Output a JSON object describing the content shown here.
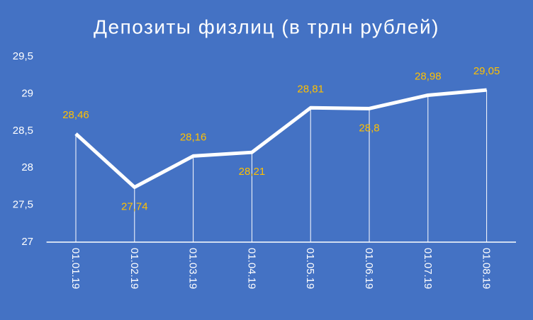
{
  "chart_data": {
    "type": "line",
    "title": "Депозиты физлиц (в трлн рублей)",
    "categories": [
      "01.01.19",
      "01.02.19",
      "01.03.19",
      "01.04.19",
      "01.05.19",
      "01.06.19",
      "01.07.19",
      "01.08.19"
    ],
    "values": [
      28.46,
      27.74,
      28.16,
      28.21,
      28.81,
      28.8,
      28.98,
      29.05
    ],
    "value_labels": [
      "28,46",
      "27,74",
      "28,16",
      "28,21",
      "28,81",
      "28,8",
      "28,98",
      "29,05"
    ],
    "color": "#ffffff",
    "label_color": "#ffc000",
    "background": "#4472c4",
    "ylim": [
      27,
      29.5
    ],
    "yticks": [
      27,
      {
        "value": 27.5,
        "label": "27,5"
      },
      28,
      {
        "value": 28.5,
        "label": "28,5"
      },
      29,
      {
        "value": 29.5,
        "label": "29,5"
      }
    ],
    "drop_lines": true,
    "grid": false
  }
}
